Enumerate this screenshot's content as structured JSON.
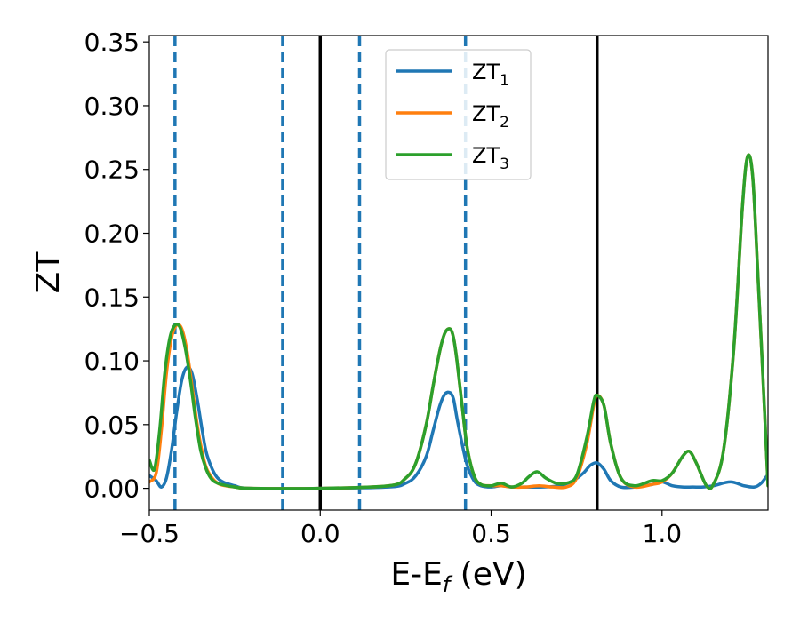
{
  "chart_data": {
    "type": "line",
    "title": "",
    "xlabel": {
      "main": "E-E",
      "sub": "f",
      "unit": " (eV)"
    },
    "ylabel": "ZT",
    "xlim": [
      -0.5,
      1.31
    ],
    "ylim": [
      -0.017,
      0.355
    ],
    "xticks": [
      -0.5,
      0.0,
      0.5,
      1.0
    ],
    "xtick_labels": [
      "−0.5",
      "0.0",
      "0.5",
      "1.0"
    ],
    "yticks": [
      0.0,
      0.05,
      0.1,
      0.15,
      0.2,
      0.25,
      0.3,
      0.35
    ],
    "ytick_labels": [
      "0.00",
      "0.05",
      "0.10",
      "0.15",
      "0.20",
      "0.25",
      "0.30",
      "0.35"
    ],
    "grid": false,
    "legend_position": "top-center",
    "vlines_dashed": [
      -0.425,
      -0.11,
      0.115,
      0.425
    ],
    "vlines_solid": [
      0.0,
      0.81
    ],
    "dashed_color": "#1f77b4",
    "solid_color": "#000000",
    "series": [
      {
        "name": "ZT",
        "name_sub": "1",
        "color": "#1f77b4",
        "x": [
          -0.5,
          -0.48,
          -0.465,
          -0.45,
          -0.435,
          -0.42,
          -0.405,
          -0.39,
          -0.375,
          -0.36,
          -0.345,
          -0.33,
          -0.3,
          -0.25,
          -0.2,
          0.0,
          0.2,
          0.25,
          0.28,
          0.31,
          0.33,
          0.35,
          0.365,
          0.38,
          0.39,
          0.4,
          0.415,
          0.43,
          0.45,
          0.47,
          0.5,
          0.53,
          0.56,
          0.6,
          0.65,
          0.7,
          0.74,
          0.77,
          0.79,
          0.81,
          0.83,
          0.85,
          0.88,
          0.92,
          0.97,
          1.0,
          1.03,
          1.06,
          1.09,
          1.12,
          1.15,
          1.2,
          1.24,
          1.27,
          1.29,
          1.31
        ],
        "y": [
          0.01,
          0.006,
          0.001,
          0.008,
          0.03,
          0.06,
          0.085,
          0.095,
          0.09,
          0.07,
          0.045,
          0.025,
          0.008,
          0.002,
          0.0,
          0.0,
          0.001,
          0.004,
          0.01,
          0.025,
          0.045,
          0.065,
          0.074,
          0.075,
          0.07,
          0.055,
          0.035,
          0.018,
          0.006,
          0.002,
          0.001,
          0.002,
          0.001,
          0.001,
          0.001,
          0.002,
          0.006,
          0.012,
          0.018,
          0.02,
          0.015,
          0.006,
          0.001,
          0.001,
          0.003,
          0.005,
          0.002,
          0.001,
          0.001,
          0.001,
          0.002,
          0.005,
          0.002,
          0.001,
          0.004,
          0.011
        ]
      },
      {
        "name": "ZT",
        "name_sub": "2",
        "color": "#ff7f0e",
        "x": [
          -0.5,
          -0.48,
          -0.465,
          -0.45,
          -0.435,
          -0.42,
          -0.405,
          -0.39,
          -0.375,
          -0.36,
          -0.345,
          -0.33,
          -0.3,
          -0.25,
          -0.2,
          0.0,
          0.2,
          0.25,
          0.28,
          0.31,
          0.33,
          0.35,
          0.365,
          0.38,
          0.39,
          0.4,
          0.415,
          0.43,
          0.45,
          0.47,
          0.5,
          0.53,
          0.56,
          0.6,
          0.64,
          0.68,
          0.72,
          0.75,
          0.78,
          0.8,
          0.81,
          0.83,
          0.85,
          0.88,
          0.92,
          0.97,
          1.0,
          1.03,
          1.06,
          1.08,
          1.1,
          1.13,
          1.15,
          1.18,
          1.21,
          1.235,
          1.25,
          1.265,
          1.28,
          1.3,
          1.31
        ],
        "y": [
          0.005,
          0.012,
          0.045,
          0.09,
          0.118,
          0.128,
          0.125,
          0.108,
          0.08,
          0.05,
          0.028,
          0.014,
          0.004,
          0.001,
          0.0,
          0.0,
          0.002,
          0.008,
          0.02,
          0.05,
          0.08,
          0.108,
          0.122,
          0.125,
          0.118,
          0.1,
          0.065,
          0.032,
          0.01,
          0.003,
          0.002,
          0.002,
          0.001,
          0.001,
          0.002,
          0.001,
          0.001,
          0.008,
          0.035,
          0.065,
          0.073,
          0.065,
          0.035,
          0.008,
          0.001,
          0.003,
          0.005,
          0.012,
          0.025,
          0.029,
          0.02,
          0.002,
          0.003,
          0.03,
          0.11,
          0.22,
          0.26,
          0.245,
          0.17,
          0.06,
          0.002
        ]
      },
      {
        "name": "ZT",
        "name_sub": "3",
        "color": "#2ca02c",
        "x": [
          -0.5,
          -0.485,
          -0.47,
          -0.455,
          -0.44,
          -0.425,
          -0.41,
          -0.395,
          -0.38,
          -0.365,
          -0.35,
          -0.335,
          -0.32,
          -0.3,
          -0.25,
          -0.2,
          0.0,
          0.2,
          0.25,
          0.28,
          0.31,
          0.33,
          0.35,
          0.365,
          0.38,
          0.39,
          0.4,
          0.415,
          0.43,
          0.45,
          0.47,
          0.5,
          0.53,
          0.56,
          0.59,
          0.61,
          0.635,
          0.66,
          0.69,
          0.72,
          0.75,
          0.78,
          0.8,
          0.81,
          0.83,
          0.85,
          0.88,
          0.92,
          0.97,
          1.0,
          1.03,
          1.06,
          1.08,
          1.1,
          1.13,
          1.15,
          1.18,
          1.21,
          1.235,
          1.25,
          1.265,
          1.28,
          1.3,
          1.31
        ],
        "y": [
          0.022,
          0.015,
          0.045,
          0.09,
          0.118,
          0.128,
          0.126,
          0.11,
          0.085,
          0.055,
          0.03,
          0.016,
          0.008,
          0.004,
          0.001,
          0.0,
          0.0,
          0.002,
          0.008,
          0.02,
          0.05,
          0.08,
          0.108,
          0.122,
          0.125,
          0.118,
          0.1,
          0.065,
          0.032,
          0.01,
          0.003,
          0.002,
          0.004,
          0.001,
          0.004,
          0.009,
          0.013,
          0.008,
          0.004,
          0.004,
          0.01,
          0.04,
          0.068,
          0.073,
          0.065,
          0.035,
          0.008,
          0.002,
          0.006,
          0.006,
          0.012,
          0.025,
          0.029,
          0.02,
          0.002,
          0.003,
          0.03,
          0.11,
          0.22,
          0.26,
          0.245,
          0.17,
          0.06,
          0.002
        ]
      }
    ]
  }
}
